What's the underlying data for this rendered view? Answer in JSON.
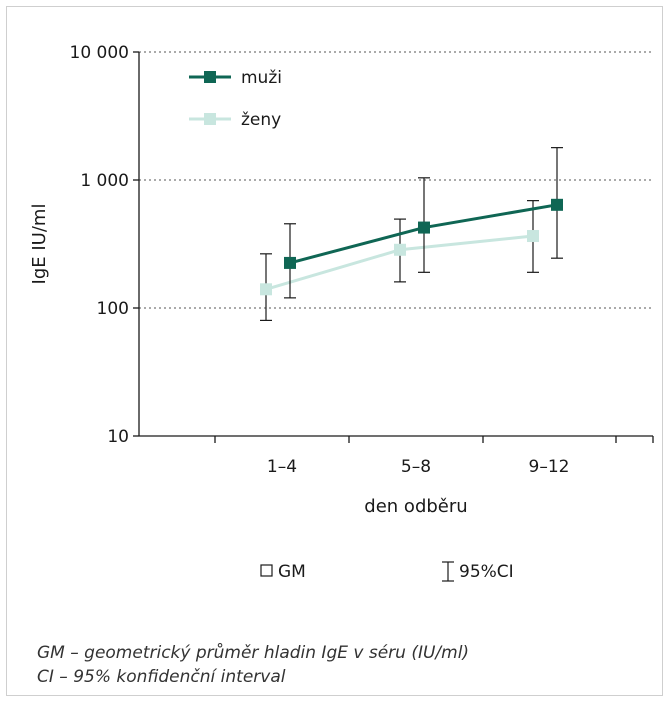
{
  "chart_data": {
    "type": "line",
    "y_scale": "log",
    "ylim": [
      10,
      10000
    ],
    "yticks": [
      {
        "value": 10,
        "label": "10"
      },
      {
        "value": 100,
        "label": "100"
      },
      {
        "value": 1000,
        "label": "1 000"
      },
      {
        "value": 10000,
        "label": "10 000"
      }
    ],
    "gridlines_at": [
      100,
      1000,
      10000
    ],
    "categories": [
      "1–4",
      "5–8",
      "9–12"
    ],
    "xlabel": "den odběru",
    "ylabel": "IgE IU/ml",
    "legend_position": "top-left",
    "series": [
      {
        "name": "muži",
        "color": "#0f6654",
        "values": [
          225,
          425,
          640
        ],
        "ci_low": [
          120,
          190,
          245
        ],
        "ci_high": [
          455,
          1040,
          1790
        ]
      },
      {
        "name": "ženy",
        "color": "#c8e6df",
        "values": [
          140,
          285,
          365
        ],
        "ci_low": [
          80,
          160,
          190
        ],
        "ci_high": [
          265,
          495,
          690
        ]
      }
    ],
    "key": [
      {
        "symbol": "□",
        "label": "GM"
      },
      {
        "symbol": "⌶",
        "label": "95%CI"
      }
    ]
  },
  "footnotes": {
    "gm": "GM – geometrický průměr hladin IgE v séru (IU/ml)",
    "ci": "CI – 95% konfidenční interval"
  }
}
